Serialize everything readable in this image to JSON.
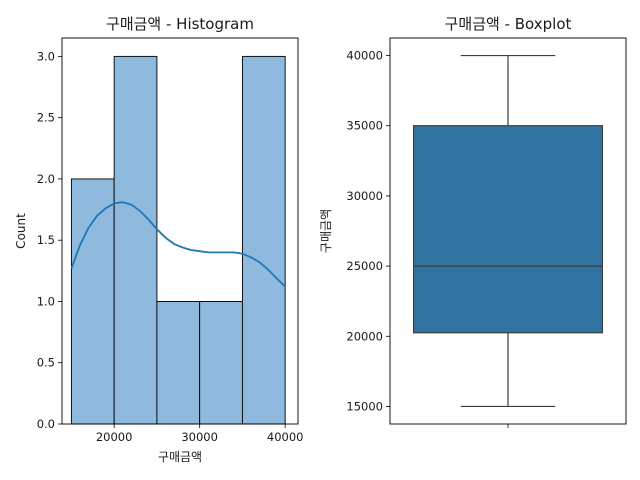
{
  "figure": {
    "left_title": "구매금액 - Histogram",
    "right_title": "구매금액 - Boxplot"
  },
  "chart_data": [
    {
      "type": "bar",
      "subtype": "histogram_with_kde",
      "title": "구매금액 - Histogram",
      "xlabel": "구매금액",
      "ylabel": "Count",
      "bin_edges": [
        15000,
        20000,
        25000,
        30000,
        35000,
        40000
      ],
      "values": [
        2,
        3,
        1,
        1,
        3
      ],
      "xlim": [
        13900,
        41500
      ],
      "ylim": [
        0,
        3.15
      ],
      "xticks": [
        20000,
        30000,
        40000
      ],
      "yticks": [
        0.0,
        0.5,
        1.0,
        1.5,
        2.0,
        2.5,
        3.0
      ],
      "ytick_labels": [
        "0.0",
        "0.5",
        "1.0",
        "1.5",
        "2.0",
        "2.5",
        "3.0"
      ],
      "bar_color": "#8fbadd",
      "kde": {
        "x": [
          15000,
          16000,
          17000,
          18000,
          19000,
          20000,
          21000,
          22000,
          23000,
          24000,
          25000,
          26000,
          27000,
          28000,
          29000,
          30000,
          31000,
          32000,
          33000,
          34000,
          35000,
          36000,
          37000,
          38000,
          39000,
          40000
        ],
        "y": [
          1.27,
          1.46,
          1.6,
          1.7,
          1.76,
          1.8,
          1.81,
          1.79,
          1.74,
          1.67,
          1.59,
          1.52,
          1.47,
          1.44,
          1.42,
          1.41,
          1.4,
          1.4,
          1.4,
          1.4,
          1.39,
          1.36,
          1.32,
          1.26,
          1.19,
          1.12
        ],
        "color": "#1f77b4"
      },
      "grid": false
    },
    {
      "type": "box",
      "title": "구매금액 - Boxplot",
      "xlabel": "",
      "ylabel": "구매금액",
      "min": 15000,
      "q1": 20250,
      "median": 25000,
      "q3": 35000,
      "max": 40000,
      "ylim": [
        13750,
        41250
      ],
      "yticks": [
        15000,
        20000,
        25000,
        30000,
        35000,
        40000
      ],
      "box_color": "#3274a1",
      "grid": false
    }
  ]
}
